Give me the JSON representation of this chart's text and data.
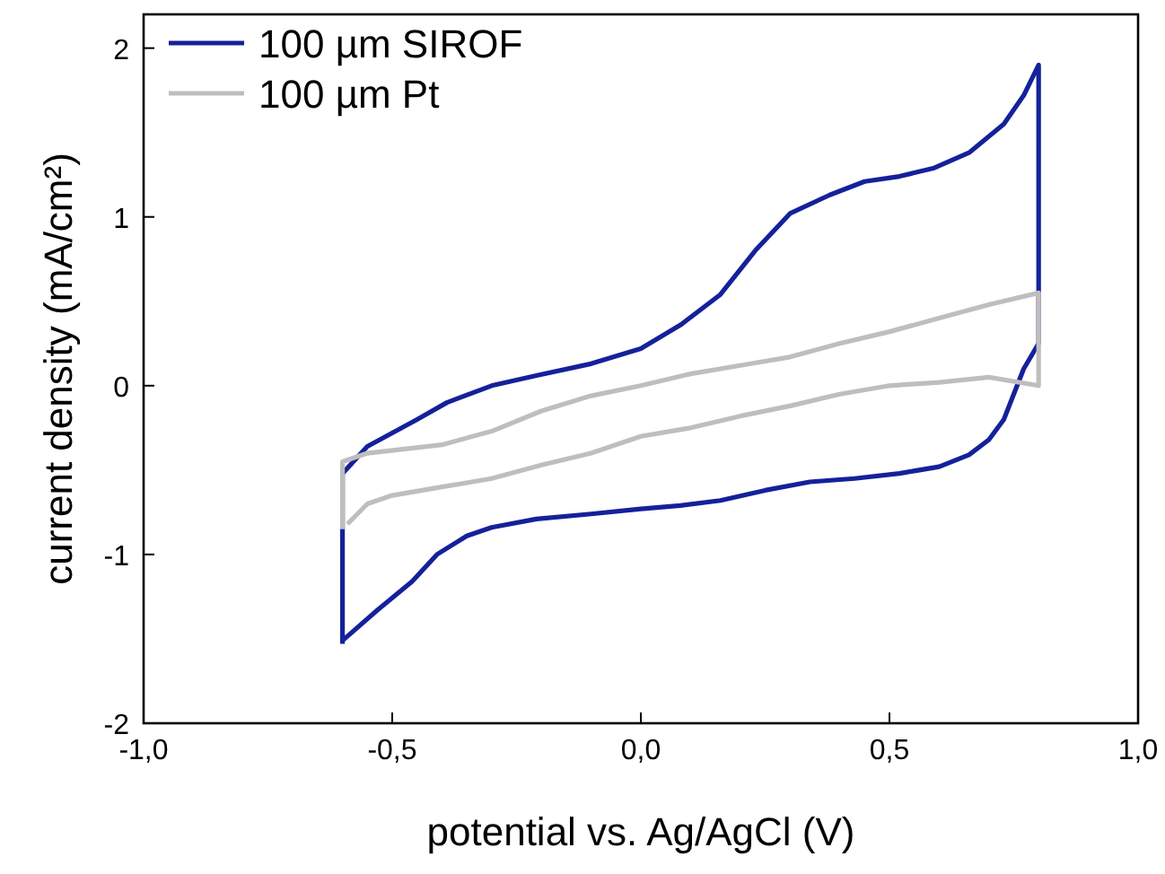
{
  "chart_data": {
    "type": "line",
    "xlabel": "potential vs. Ag/AgCl (V)",
    "ylabel": "current density (mA/cm²)",
    "xlim": [
      -1,
      1
    ],
    "ylim": [
      -2,
      2.2
    ],
    "xticks": [
      {
        "value": -1,
        "label": "-1,0"
      },
      {
        "value": -0.5,
        "label": "-0,5"
      },
      {
        "value": 0,
        "label": "0,0"
      },
      {
        "value": 0.5,
        "label": "0,5"
      },
      {
        "value": 1,
        "label": "1,0"
      }
    ],
    "yticks": [
      {
        "value": -2,
        "label": "-2"
      },
      {
        "value": -1,
        "label": "-1"
      },
      0,
      1,
      2
    ],
    "legend": "top left",
    "grid": false,
    "marker": "none",
    "line_style": "solid",
    "series": [
      {
        "name": "100 µm SIROF",
        "color": "#14219a",
        "x": [
          -0.6,
          -0.6,
          -0.55,
          -0.45,
          -0.39,
          -0.3,
          -0.21,
          -0.1,
          0,
          0.08,
          0.16,
          0.23,
          0.3,
          0.38,
          0.45,
          0.52,
          0.59,
          0.66,
          0.73,
          0.77,
          0.8,
          0.8,
          0.77,
          0.73,
          0.7,
          0.66,
          0.6,
          0.52,
          0.43,
          0.34,
          0.25,
          0.16,
          0.08,
          0,
          -0.1,
          -0.21,
          -0.3,
          -0.35,
          -0.41,
          -0.46,
          -0.53,
          -0.6
        ],
        "values": [
          -1.53,
          -0.52,
          -0.36,
          -0.2,
          -0.1,
          0.0,
          0.06,
          0.13,
          0.22,
          0.36,
          0.54,
          0.8,
          1.02,
          1.13,
          1.21,
          1.24,
          1.29,
          1.38,
          1.55,
          1.72,
          1.9,
          0.25,
          0.1,
          -0.2,
          -0.32,
          -0.41,
          -0.48,
          -0.52,
          -0.55,
          -0.57,
          -0.62,
          -0.68,
          -0.71,
          -0.73,
          -0.76,
          -0.79,
          -0.84,
          -0.89,
          -1.0,
          -1.16,
          -1.33,
          -1.51
        ]
      },
      {
        "name": "100 µm Pt",
        "color": "#bebebe",
        "x": [
          -0.6,
          -0.6,
          -0.55,
          -0.4,
          -0.3,
          -0.2,
          -0.1,
          0,
          0.1,
          0.2,
          0.3,
          0.4,
          0.5,
          0.6,
          0.7,
          0.8,
          0.8,
          0.7,
          0.6,
          0.5,
          0.4,
          0.3,
          0.2,
          0.1,
          0,
          -0.1,
          -0.2,
          -0.3,
          -0.4,
          -0.5,
          -0.55,
          -0.59
        ],
        "values": [
          -0.85,
          -0.45,
          -0.4,
          -0.35,
          -0.27,
          -0.15,
          -0.06,
          0.0,
          0.07,
          0.12,
          0.17,
          0.25,
          0.32,
          0.4,
          0.48,
          0.55,
          0.0,
          0.05,
          0.02,
          0.0,
          -0.05,
          -0.12,
          -0.18,
          -0.25,
          -0.3,
          -0.4,
          -0.47,
          -0.55,
          -0.6,
          -0.65,
          -0.7,
          -0.82
        ]
      }
    ]
  }
}
